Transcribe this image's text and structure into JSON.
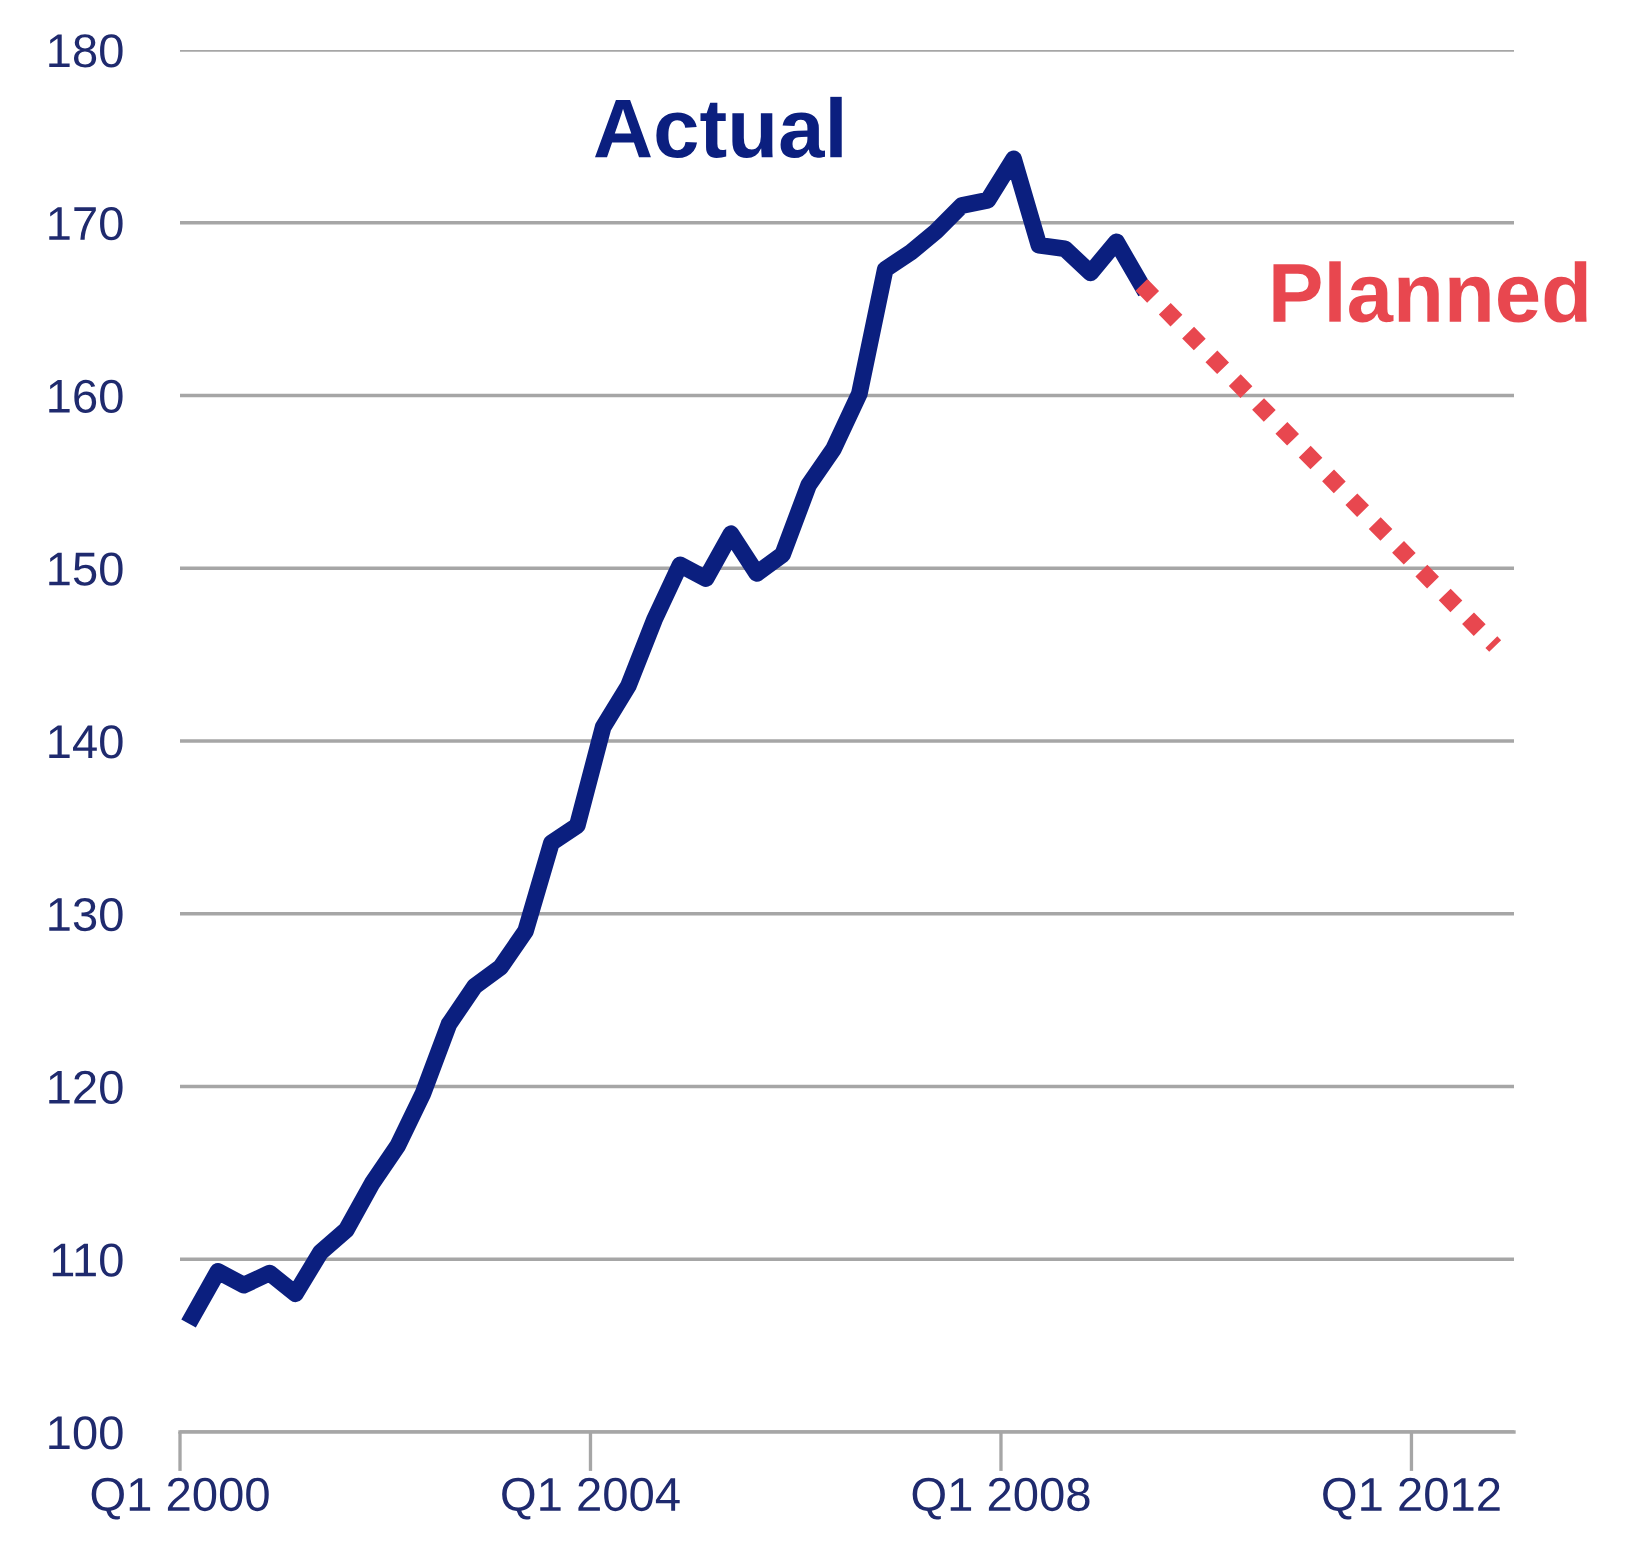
{
  "chart_data": {
    "type": "line",
    "series": [
      {
        "name": "Actual",
        "color": "#0b1f7f",
        "line_style": "solid",
        "x": [
          "2000-02-15",
          "2000-05-15",
          "2000-08-15",
          "2000-11-15",
          "2001-02-15",
          "2001-05-15",
          "2001-08-15",
          "2001-11-15",
          "2002-02-15",
          "2002-05-15",
          "2002-08-15",
          "2002-11-15",
          "2003-02-15",
          "2003-05-15",
          "2003-08-15",
          "2003-11-15",
          "2004-02-15",
          "2004-05-15",
          "2004-08-15",
          "2004-11-15",
          "2005-02-15",
          "2005-05-15",
          "2005-08-15",
          "2005-11-15",
          "2006-02-15",
          "2006-05-15",
          "2006-08-15",
          "2006-11-15",
          "2007-02-15",
          "2007-05-15",
          "2007-08-15",
          "2007-11-15",
          "2008-02-15",
          "2008-05-15",
          "2008-08-15",
          "2008-11-15",
          "2009-02-15",
          "2009-05-15"
        ],
        "values": [
          106.7,
          109.3,
          108.5,
          109.2,
          108.0,
          110.4,
          111.7,
          114.4,
          116.6,
          119.6,
          123.6,
          125.8,
          126.9,
          129.0,
          134.1,
          135.1,
          140.8,
          143.2,
          147.0,
          150.2,
          149.4,
          152.0,
          149.7,
          150.8,
          154.8,
          156.9,
          160.1,
          167.3,
          168.3,
          169.5,
          171.0,
          171.3,
          173.7,
          168.7,
          168.5,
          167.1,
          168.9,
          166.4
        ]
      },
      {
        "name": "Planned",
        "color": "#e8474f",
        "line_style": "dotted",
        "x": [
          "2009-05-15",
          "2012-10-25"
        ],
        "values": [
          166.4,
          145.5
        ]
      }
    ],
    "xlim": [
      "2000-01-01",
      "2012-12-31"
    ],
    "xticks": [
      {
        "value": "2000-01-01",
        "label": "Q1 2000"
      },
      {
        "value": "2004-01-01",
        "label": "Q1 2004"
      },
      {
        "value": "2008-01-01",
        "label": "Q1 2008"
      },
      {
        "value": "2012-01-01",
        "label": "Q1 2012"
      }
    ],
    "ylim": [
      100,
      180
    ],
    "yticks": [
      100,
      110,
      120,
      130,
      140,
      150,
      160,
      170,
      180
    ],
    "grid": "y",
    "legend": false,
    "marker": "none"
  }
}
